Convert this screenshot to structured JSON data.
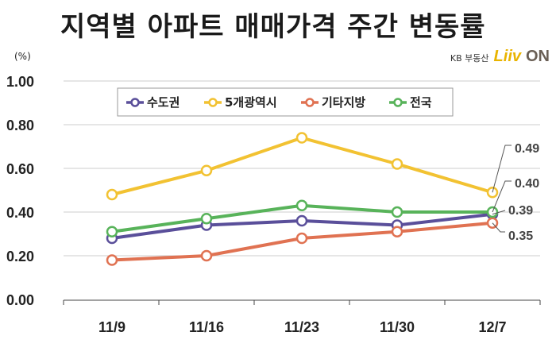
{
  "title": "지역별 아파트 매매가격 주간 변동률",
  "unit": "(%)",
  "brand": {
    "small": "KB 부동산",
    "liiv": "Liiv",
    "on": "ON"
  },
  "chart_data": {
    "type": "line",
    "categories": [
      "11/9",
      "11/16",
      "11/23",
      "11/30",
      "12/7"
    ],
    "ylim": [
      0,
      1
    ],
    "yticks": [
      "0.00",
      "0.20",
      "0.40",
      "0.60",
      "0.80",
      "1.00"
    ],
    "grid": true,
    "legend_position": "top-center",
    "series": [
      {
        "name": "수도권",
        "color": "#5a4f9a",
        "values": [
          0.28,
          0.34,
          0.36,
          0.34,
          0.39
        ],
        "end_label": "0.39"
      },
      {
        "name": "5개광역시",
        "color": "#f2c232",
        "values": [
          0.48,
          0.59,
          0.74,
          0.62,
          0.49
        ],
        "end_label": "0.49"
      },
      {
        "name": "기타지방",
        "color": "#e07252",
        "values": [
          0.18,
          0.2,
          0.28,
          0.31,
          0.35
        ],
        "end_label": "0.35"
      },
      {
        "name": "전국",
        "color": "#58b35a",
        "values": [
          0.31,
          0.37,
          0.43,
          0.4,
          0.4
        ],
        "end_label": "0.40"
      }
    ]
  }
}
